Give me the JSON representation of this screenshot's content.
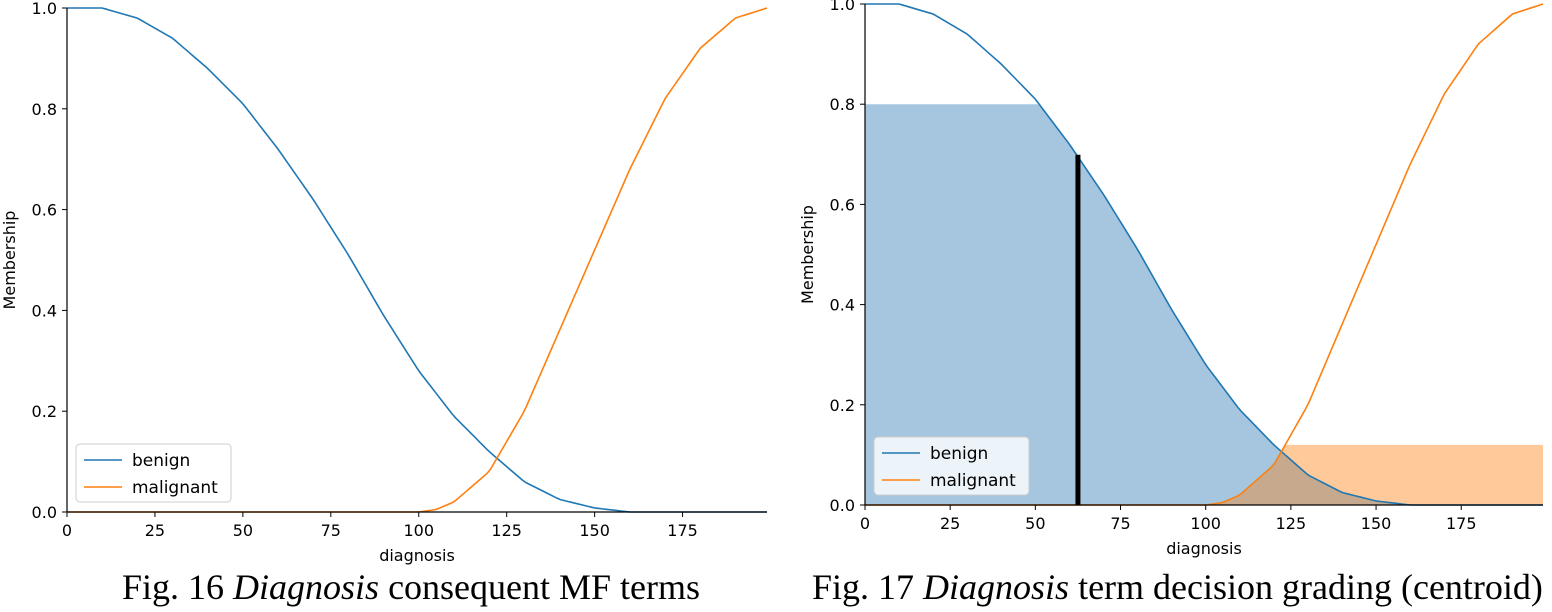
{
  "figures": [
    {
      "caption": {
        "prefix": "Fig. 16 ",
        "italic": "Diagnosis",
        "suffix": " consequent MF terms"
      },
      "chart_data": {
        "type": "line",
        "xlabel": "diagnosis",
        "ylabel": "Membership",
        "xlim": [
          0,
          199
        ],
        "ylim": [
          0,
          1.0
        ],
        "xticks": [
          0,
          25,
          50,
          75,
          100,
          125,
          150,
          175
        ],
        "yticks": [
          "0.0",
          "0.2",
          "0.4",
          "0.6",
          "0.8",
          "1.0"
        ],
        "legend_position": "lower-left",
        "series": [
          {
            "name": "benign",
            "color": "#1f77b4",
            "x": [
              0,
              10,
              20,
              30,
              40,
              50,
              60,
              70,
              80,
              90,
              100,
              110,
              120,
              130,
              140,
              150,
              160,
              170,
              180,
              199
            ],
            "y": [
              1.0,
              1.0,
              0.98,
              0.94,
              0.88,
              0.81,
              0.72,
              0.62,
              0.51,
              0.39,
              0.28,
              0.19,
              0.12,
              0.06,
              0.025,
              0.008,
              0.0,
              0.0,
              0.0,
              0.0
            ]
          },
          {
            "name": "malignant",
            "color": "#ff7f0e",
            "x": [
              0,
              100,
              105,
              110,
              120,
              130,
              140,
              150,
              160,
              170,
              180,
              190,
              199
            ],
            "y": [
              0.0,
              0.0,
              0.005,
              0.02,
              0.08,
              0.2,
              0.36,
              0.52,
              0.68,
              0.82,
              0.92,
              0.98,
              1.0
            ]
          }
        ]
      }
    },
    {
      "caption": {
        "prefix": "Fig. 17 ",
        "italic": "Diagnosis",
        "suffix": " term decision grading (centroid)"
      },
      "chart_data": {
        "type": "line",
        "xlabel": "diagnosis",
        "ylabel": "Membership",
        "xlim": [
          0,
          199
        ],
        "ylim": [
          0,
          1.0
        ],
        "xticks": [
          0,
          25,
          50,
          75,
          100,
          125,
          150,
          175
        ],
        "yticks": [
          "0.0",
          "0.2",
          "0.4",
          "0.6",
          "0.8",
          "1.0"
        ],
        "legend_position": "lower-left",
        "series": [
          {
            "name": "benign",
            "color": "#1f77b4",
            "x": [
              0,
              10,
              20,
              30,
              40,
              50,
              60,
              70,
              80,
              90,
              100,
              110,
              120,
              130,
              140,
              150,
              160,
              170,
              180,
              199
            ],
            "y": [
              1.0,
              1.0,
              0.98,
              0.94,
              0.88,
              0.81,
              0.72,
              0.62,
              0.51,
              0.39,
              0.28,
              0.19,
              0.12,
              0.06,
              0.025,
              0.008,
              0.0,
              0.0,
              0.0,
              0.0
            ]
          },
          {
            "name": "malignant",
            "color": "#ff7f0e",
            "x": [
              0,
              100,
              105,
              110,
              120,
              130,
              140,
              150,
              160,
              170,
              180,
              190,
              199
            ],
            "y": [
              0.0,
              0.0,
              0.005,
              0.02,
              0.08,
              0.2,
              0.36,
              0.52,
              0.68,
              0.82,
              0.92,
              0.98,
              1.0
            ]
          }
        ],
        "activation": {
          "benign": 0.8,
          "malignant": 0.12
        },
        "fill_colors": {
          "benign": "#a6c6e0",
          "malignant": "#ffc99a",
          "overlap": "#c7aa8d"
        },
        "centroid": 62.5
      }
    }
  ]
}
